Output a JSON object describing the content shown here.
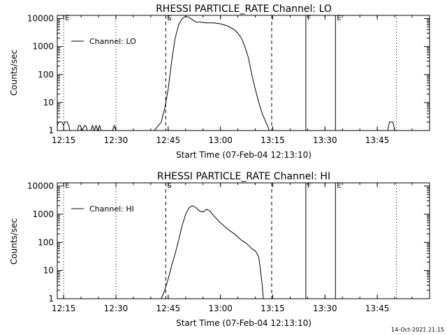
{
  "footer": {
    "timestamp": "14-Oct-2021 21:15"
  },
  "chart_data": [
    {
      "type": "line",
      "title": "RHESSI PARTICLE_RATE Channel: LO",
      "xlabel": "Start Time (07-Feb-04 12:13:10)",
      "ylabel": "Counts/sec",
      "x_tick_labels": [
        "12:15",
        "12:30",
        "12:45",
        "13:00",
        "13:15",
        "13:30",
        "13:45"
      ],
      "x_tick_minutes": [
        15,
        30,
        45,
        60,
        75,
        90,
        105
      ],
      "xlim_minutes": [
        13.17,
        120
      ],
      "y_tick_labels": [
        "1",
        "10",
        "100",
        "1000",
        "10000"
      ],
      "y_tick_values": [
        1,
        10,
        100,
        1000,
        10000
      ],
      "ylim": [
        1,
        13000
      ],
      "yscale": "log",
      "legend": {
        "placement": "top-left",
        "entries": [
          "Channel: LO"
        ]
      },
      "markers": [
        {
          "label": "E",
          "minute": 15.0,
          "style": "dotted"
        },
        {
          "label": "",
          "minute": 30.0,
          "style": "dotted"
        },
        {
          "label": "S",
          "minute": 44.3,
          "style": "dashed"
        },
        {
          "label": "",
          "minute": 74.7,
          "style": "dashed"
        },
        {
          "label": "F",
          "minute": 84.5,
          "style": "solid"
        },
        {
          "label": "E",
          "minute": 93.0,
          "style": "solid"
        },
        {
          "label": "",
          "minute": 110.5,
          "style": "dotted"
        }
      ],
      "series": [
        {
          "name": "Channel: LO",
          "x": [
            13.17,
            13.5,
            14.5,
            15.0,
            15.3,
            16.0,
            16.5,
            16.8,
            17.5,
            18.0,
            18.3,
            19.0,
            19.3,
            19.8,
            20.3,
            21.0,
            21.3,
            21.8,
            22.5,
            22.8,
            23.3,
            23.8,
            24.3,
            24.8,
            25.3,
            25.8,
            26.5,
            27.0,
            27.5,
            28.0,
            28.5,
            29.0,
            29.5,
            30.0,
            30.5,
            31.0,
            32.0,
            35.0,
            38.0,
            41.0,
            43.0,
            44.0,
            45.0,
            46.0,
            47.0,
            48.0,
            49.0,
            50.0,
            51.0,
            52.0,
            53.0,
            54.0,
            56.0,
            58.0,
            60.0,
            62.0,
            64.0,
            65.0,
            66.0,
            67.0,
            68.0,
            69.0,
            70.0,
            71.0,
            72.0,
            73.0,
            73.5,
            74.0,
            74.5,
            75.5,
            78.0,
            85.0,
            95.0,
            105.0,
            108.0,
            108.5,
            109.5,
            110.0
          ],
          "y": [
            1.5,
            2.0,
            2.0,
            1.5,
            2.0,
            2.0,
            1.5,
            1.0,
            1.0,
            1.0,
            1.0,
            1.0,
            1.5,
            1.5,
            1.0,
            1.5,
            1.5,
            1.0,
            1.0,
            1.0,
            1.5,
            1.0,
            1.5,
            1.0,
            1.5,
            1.0,
            1.0,
            1.0,
            1.0,
            1.0,
            1.0,
            1.0,
            1.5,
            1.0,
            1.0,
            1.0,
            1.0,
            1.0,
            1.0,
            1.0,
            2.0,
            6.0,
            30,
            300,
            2000,
            6000,
            10000,
            12000,
            11000,
            9000,
            7500,
            7500,
            7000,
            7000,
            6500,
            5500,
            4000,
            3000,
            2000,
            1000,
            400,
            100,
            30,
            10,
            4,
            2,
            1.5,
            1.0,
            1.0,
            1.0,
            1.0,
            1.0,
            1.0,
            1.0,
            1.0,
            2.0,
            2.0,
            1.0
          ]
        }
      ]
    },
    {
      "type": "line",
      "title": "RHESSI PARTICLE_RATE Channel: HI",
      "xlabel": "Start Time (07-Feb-04 12:13:10)",
      "ylabel": "Counts/sec",
      "x_tick_labels": [
        "12:15",
        "12:30",
        "12:45",
        "13:00",
        "13:15",
        "13:30",
        "13:45"
      ],
      "x_tick_minutes": [
        15,
        30,
        45,
        60,
        75,
        90,
        105
      ],
      "xlim_minutes": [
        13.17,
        120
      ],
      "y_tick_labels": [
        "1",
        "10",
        "100",
        "1000",
        "10000"
      ],
      "y_tick_values": [
        1,
        10,
        100,
        1000,
        10000
      ],
      "ylim": [
        1,
        13000
      ],
      "yscale": "log",
      "legend": {
        "placement": "top-left",
        "entries": [
          "Channel: HI"
        ]
      },
      "markers": [
        {
          "label": "E",
          "minute": 15.0,
          "style": "dotted"
        },
        {
          "label": "",
          "minute": 30.0,
          "style": "dotted"
        },
        {
          "label": "S",
          "minute": 44.3,
          "style": "dashed"
        },
        {
          "label": "",
          "minute": 74.7,
          "style": "dashed"
        },
        {
          "label": "F",
          "minute": 84.5,
          "style": "solid"
        },
        {
          "label": "E",
          "minute": 93.0,
          "style": "solid"
        },
        {
          "label": "",
          "minute": 110.5,
          "style": "dotted"
        }
      ],
      "series": [
        {
          "name": "Channel: HI",
          "x": [
            43.0,
            44.0,
            45.0,
            46.0,
            47.0,
            48.0,
            49.0,
            50.0,
            51.0,
            52.0,
            53.0,
            54.0,
            55.0,
            56.0,
            57.0,
            58.0,
            60.0,
            62.0,
            64.0,
            66.0,
            67.0,
            68.0,
            69.0,
            70.0,
            70.5,
            71.0,
            71.5,
            72.0,
            72.3
          ],
          "y": [
            1.0,
            2.0,
            5.0,
            15,
            40,
            120,
            400,
            1000,
            1700,
            2000,
            1700,
            1300,
            1200,
            1500,
            1300,
            900,
            500,
            300,
            200,
            120,
            100,
            80,
            60,
            50,
            40,
            30,
            10,
            3,
            1.0
          ]
        }
      ]
    }
  ]
}
